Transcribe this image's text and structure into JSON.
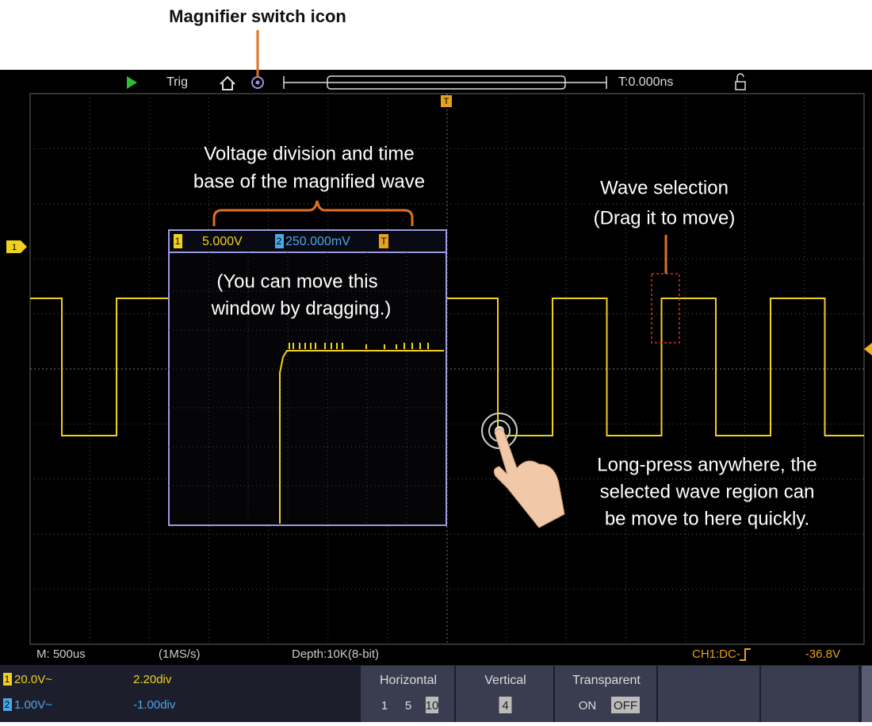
{
  "annotations": {
    "magnifier_switch": "Magnifier switch icon",
    "voltage_division": [
      "Voltage division and time",
      "base of the magnified wave"
    ],
    "move_window": [
      "(You can move this",
      "window by dragging.)"
    ],
    "wave_selection": {
      "title": "Wave selection",
      "hint": "(Drag it to move)"
    },
    "long_press": [
      "Long-press anywhere, the",
      "selected wave region can",
      "be move to here quickly."
    ]
  },
  "top_bar": {
    "trigger_status": "Trig",
    "trigger_time": "T:0.000ns"
  },
  "markers": {
    "trigger": "T",
    "channel": "1"
  },
  "magnifier_window": {
    "ch1_label": "1",
    "ch1_scale": "5.000V",
    "ch2_label": "2",
    "ch2_scale": "250.000mV",
    "trigger_label": "T"
  },
  "status_bar": {
    "timebase": "M: 500us",
    "sample_rate": "(1MS/s)",
    "depth": "Depth:10K(8-bit)",
    "trigger_source": "CH1:DC-",
    "trigger_level": "-36.8V"
  },
  "channels": [
    {
      "label": "1",
      "scale": "20.0V~",
      "offset": "2.20div"
    },
    {
      "label": "2",
      "scale": "1.00V~",
      "offset": "-1.00div"
    }
  ],
  "menu": [
    {
      "title": "Horizontal",
      "options": [
        "1",
        "5",
        "10"
      ]
    },
    {
      "title": "Vertical",
      "options": [
        "4"
      ]
    },
    {
      "title": "Transparent",
      "options": [
        "ON",
        "OFF"
      ]
    }
  ]
}
